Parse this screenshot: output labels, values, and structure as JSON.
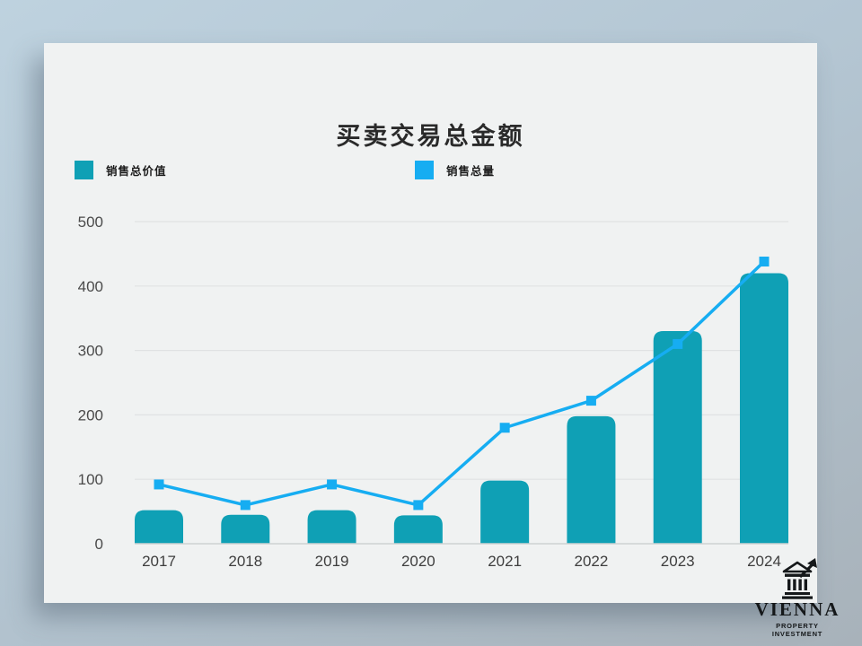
{
  "title": "买卖交易总金额",
  "legend": [
    {
      "label": "销售总价值",
      "color": "#0fa0b5",
      "marker": "square"
    },
    {
      "label": "销售总量",
      "color": "#16adf2",
      "marker": "square"
    }
  ],
  "chart_data": {
    "type": "bar+line",
    "title": "买卖交易总金额",
    "categories": [
      "2017",
      "2018",
      "2019",
      "2020",
      "2021",
      "2022",
      "2023",
      "2024"
    ],
    "series": [
      {
        "name": "销售总价值",
        "type": "bar",
        "color": "#0fa0b5",
        "values": [
          52,
          45,
          52,
          44,
          98,
          198,
          330,
          420
        ]
      },
      {
        "name": "销售总量",
        "type": "line",
        "color": "#16adf2",
        "values": [
          92,
          60,
          92,
          60,
          180,
          222,
          310,
          438
        ]
      }
    ],
    "xlabel": "",
    "ylabel": "",
    "ylim": [
      0,
      500
    ],
    "yticks": [
      0,
      100,
      200,
      300,
      400,
      500
    ],
    "grid": true,
    "legend_position": "top-left"
  },
  "colors": {
    "page_bg_start": "#bed2df",
    "page_bg_end": "#a8b2ba",
    "card_bg": "#f0f2f2",
    "gridline": "#e0e2e3",
    "axis_line": "#cdd1d2",
    "tick_text": "#4a4a4a",
    "title_text": "#2a2a2a"
  },
  "logo": {
    "brand": "VIENNA",
    "tagline": "PROPERTY INVESTMENT",
    "icon": "bank-building-with-growth-arrow"
  }
}
